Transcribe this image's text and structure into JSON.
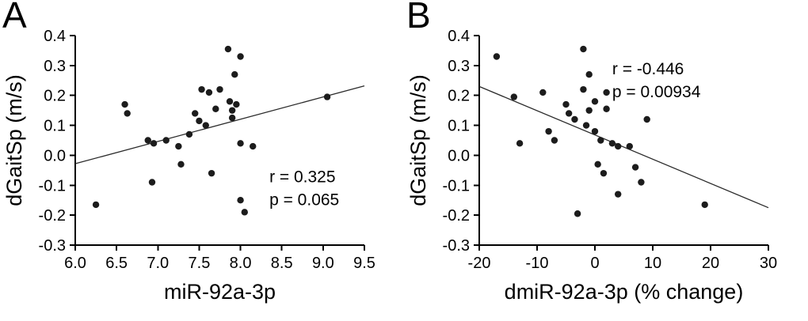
{
  "figure": {
    "background": "#ffffff",
    "ink_color": "#000000",
    "point_color": "#1c1c1c",
    "trendline_color": "#2a2a2a"
  },
  "chart_data": [
    {
      "type": "scatter",
      "panel_label": "A",
      "title": "",
      "xlabel": "miR-92a-3p",
      "ylabel": "dGaitSp (m/s)",
      "xlim": [
        6.0,
        9.5
      ],
      "ylim": [
        -0.3,
        0.4
      ],
      "xticks": [
        6.0,
        6.5,
        7.0,
        7.5,
        8.0,
        8.5,
        9.0,
        9.5
      ],
      "xtick_labels": [
        "6.0",
        "6.5",
        "7.0",
        "7.5",
        "8.0",
        "8.5",
        "9.0",
        "9.5"
      ],
      "yticks": [
        -0.3,
        -0.2,
        -0.1,
        0.0,
        0.1,
        0.2,
        0.3,
        0.4
      ],
      "ytick_labels": [
        "-0.3",
        "-0.2",
        "-0.1",
        "0.0",
        "0.1",
        "0.2",
        "0.3",
        "0.4"
      ],
      "grid": false,
      "legend": null,
      "r": 0.325,
      "p": 0.065,
      "annotation": {
        "lines": [
          "r = 0.325",
          "p = 0.065"
        ],
        "x": 8.35,
        "y": -0.09
      },
      "trendline": {
        "x1": 6.0,
        "y1": -0.028,
        "x2": 9.5,
        "y2": 0.232
      },
      "points": [
        [
          6.25,
          -0.165
        ],
        [
          6.6,
          0.17
        ],
        [
          6.63,
          0.14
        ],
        [
          6.88,
          0.05
        ],
        [
          6.95,
          0.04
        ],
        [
          6.93,
          -0.09
        ],
        [
          7.1,
          0.05
        ],
        [
          7.25,
          0.03
        ],
        [
          7.28,
          -0.03
        ],
        [
          7.38,
          0.07
        ],
        [
          7.45,
          0.14
        ],
        [
          7.5,
          0.115
        ],
        [
          7.53,
          0.22
        ],
        [
          7.58,
          0.1
        ],
        [
          7.62,
          0.21
        ],
        [
          7.65,
          -0.06
        ],
        [
          7.7,
          0.155
        ],
        [
          7.75,
          0.22
        ],
        [
          7.85,
          0.355
        ],
        [
          7.87,
          0.18
        ],
        [
          7.9,
          0.15
        ],
        [
          7.9,
          0.125
        ],
        [
          7.93,
          0.27
        ],
        [
          7.95,
          0.17
        ],
        [
          8.0,
          0.33
        ],
        [
          8.0,
          0.04
        ],
        [
          8.0,
          -0.15
        ],
        [
          8.05,
          -0.19
        ],
        [
          8.15,
          0.03
        ],
        [
          9.05,
          0.195
        ]
      ]
    },
    {
      "type": "scatter",
      "panel_label": "B",
      "title": "",
      "xlabel": "dmiR-92a-3p (% change)",
      "ylabel": "dGaitSp (m/s)",
      "xlim": [
        -20,
        30
      ],
      "ylim": [
        -0.3,
        0.4
      ],
      "xticks": [
        -20,
        -10,
        0,
        10,
        20,
        30
      ],
      "xtick_labels": [
        "-20",
        "-10",
        "0",
        "10",
        "20",
        "30"
      ],
      "yticks": [
        -0.3,
        -0.2,
        -0.1,
        0.0,
        0.1,
        0.2,
        0.3,
        0.4
      ],
      "ytick_labels": [
        "-0.3",
        "-0.2",
        "-0.1",
        "0.0",
        "0.1",
        "0.2",
        "0.3",
        "0.4"
      ],
      "grid": false,
      "legend": null,
      "r": -0.446,
      "p": 0.00934,
      "annotation": {
        "lines": [
          "r = -0.446",
          "p = 0.00934"
        ],
        "x": 3,
        "y": 0.27
      },
      "trendline": {
        "x1": -20,
        "y1": 0.23,
        "x2": 30,
        "y2": -0.175
      },
      "points": [
        [
          -17,
          0.33
        ],
        [
          -14,
          0.195
        ],
        [
          -13,
          0.04
        ],
        [
          -9,
          0.21
        ],
        [
          -8,
          0.08
        ],
        [
          -7,
          0.05
        ],
        [
          -5,
          0.17
        ],
        [
          -4.5,
          0.14
        ],
        [
          -3.5,
          0.12
        ],
        [
          -3,
          -0.195
        ],
        [
          -2,
          0.355
        ],
        [
          -2,
          0.22
        ],
        [
          -1.5,
          0.1
        ],
        [
          -1,
          0.27
        ],
        [
          -1,
          0.15
        ],
        [
          0,
          0.18
        ],
        [
          0,
          0.08
        ],
        [
          0.5,
          -0.03
        ],
        [
          1,
          0.05
        ],
        [
          1.5,
          -0.06
        ],
        [
          2,
          0.21
        ],
        [
          2,
          0.155
        ],
        [
          3,
          0.04
        ],
        [
          4,
          0.03
        ],
        [
          4,
          -0.13
        ],
        [
          6,
          0.03
        ],
        [
          7,
          -0.04
        ],
        [
          8,
          -0.09
        ],
        [
          9,
          0.12
        ],
        [
          19,
          -0.165
        ]
      ]
    }
  ]
}
